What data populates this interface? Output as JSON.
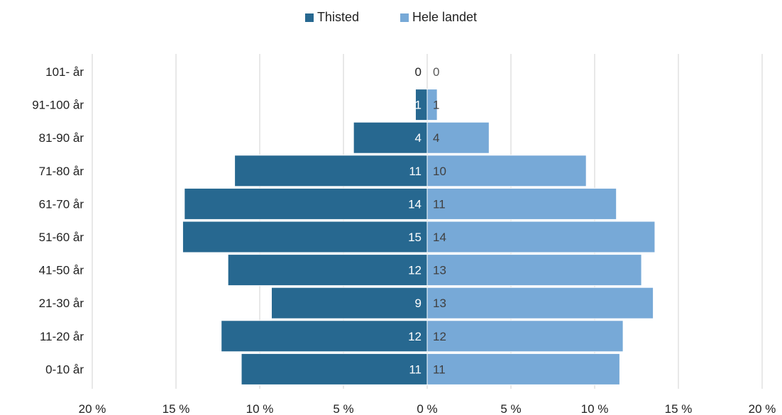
{
  "colors": {
    "thisted": "#276890",
    "hele_landet": "#77a9d7",
    "grid": "#d9d9d9"
  },
  "legend": {
    "thisted": "Thisted",
    "hele_landet": "Hele landet"
  },
  "chart_data": {
    "type": "bar",
    "orientation": "horizontal-diverging",
    "categories": [
      "101- år",
      "91-100 år",
      "81-90 år",
      "71-80 år",
      "61-70 år",
      "51-60 år",
      "41-50 år",
      "21-30 år",
      "11-20 år",
      "0-10 år"
    ],
    "series": [
      {
        "name": "Thisted",
        "values": [
          0,
          0.7,
          4.4,
          11.5,
          14.5,
          14.6,
          11.9,
          9.3,
          12.3,
          11.1
        ],
        "labels": [
          "0",
          "1",
          "4",
          "11",
          "14",
          "15",
          "12",
          "9",
          "12",
          "11"
        ],
        "side": "left"
      },
      {
        "name": "Hele landet",
        "values": [
          0,
          0.6,
          3.7,
          9.5,
          11.3,
          13.6,
          12.8,
          13.5,
          11.7,
          11.5
        ],
        "labels": [
          "0",
          "1",
          "4",
          "10",
          "11",
          "14",
          "13",
          "13",
          "12",
          "11"
        ],
        "side": "right"
      }
    ],
    "x_ticks": [
      -20,
      -15,
      -10,
      -5,
      0,
      5,
      10,
      15,
      20
    ],
    "x_tick_labels": [
      "20 %",
      "15 %",
      "10 %",
      "5 %",
      "0 %",
      "5 %",
      "10 %",
      "15 %",
      "20 %"
    ],
    "xlim": [
      -20,
      20
    ],
    "grid": true,
    "legend_position": "top-center",
    "title": "",
    "xlabel": "",
    "ylabel": ""
  }
}
